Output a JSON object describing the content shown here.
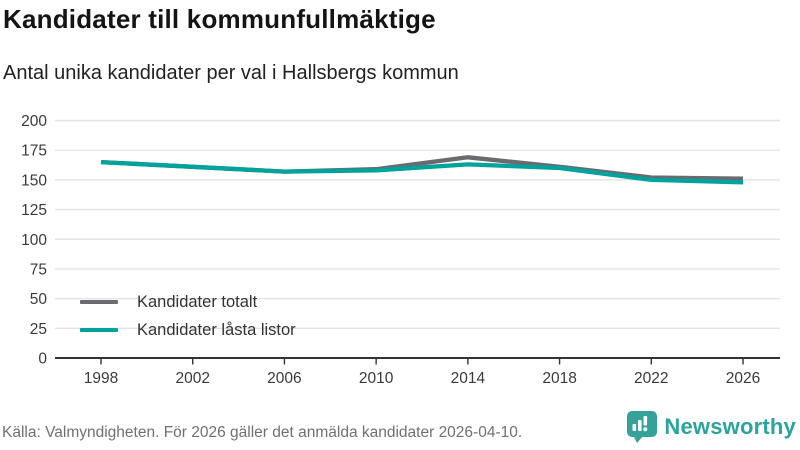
{
  "header": {
    "title": "Kandidater till kommunfullmäktige",
    "subtitle": "Antal unika kandidater per val i Hallsbergs kommun"
  },
  "chart_data": {
    "type": "line",
    "categories": [
      "1998",
      "2002",
      "2006",
      "2010",
      "2014",
      "2018",
      "2022",
      "2026"
    ],
    "series": [
      {
        "name": "Kandidater totalt",
        "color": "#6a6a70",
        "values": [
          165,
          161,
          157,
          159,
          169,
          161,
          152,
          151
        ]
      },
      {
        "name": "Kandidater låsta listor",
        "color": "#00a39b",
        "values": [
          165,
          161,
          157,
          158,
          163,
          160,
          150,
          148
        ]
      }
    ],
    "title": "Kandidater till kommunfullmäktige",
    "subtitle": "Antal unika kandidater per val i Hallsbergs kommun",
    "xlabel": "",
    "ylabel": "",
    "ylim": [
      0,
      200
    ],
    "y_ticks": [
      0,
      25,
      50,
      75,
      100,
      125,
      150,
      175,
      200
    ],
    "grid": "horizontal-only",
    "legend_position": "inside-bottom-left"
  },
  "footer": {
    "source": "Källa: Valmyndigheten. För 2026 gäller det anmälda kandidater 2026-04-10."
  },
  "logo": {
    "text": "Newsworthy",
    "icon": "newsworthy-bar-chart-bubble-icon",
    "icon_color": "#35a29a",
    "text_color": "#2aa49c"
  },
  "colors": {
    "grid": "#e4e4e4",
    "axis": "#333333",
    "tick_text": "#3a3a3a",
    "footer_text": "#707070"
  }
}
